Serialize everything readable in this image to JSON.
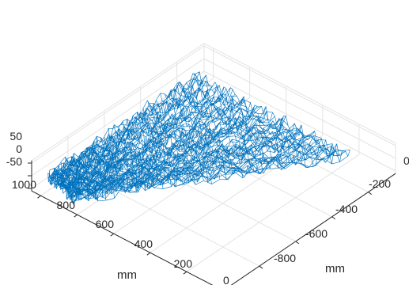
{
  "chart_data": {
    "type": "surface3d",
    "render_style": "mesh",
    "view": "isometric 3-D with box grid",
    "line_color": "#0072BD",
    "axes_color": "#262626",
    "grid_color": "#e3e3e3",
    "x_axis": {
      "label": "mm",
      "ticks": [
        0,
        -200,
        -400,
        -600,
        -800
      ],
      "tick_labels": [
        "0",
        "-200",
        "-400",
        "-600",
        "-800"
      ],
      "lim": [
        -950,
        0
      ]
    },
    "y_axis": {
      "label": "mm",
      "ticks": [
        0,
        200,
        400,
        600,
        800,
        1000
      ],
      "tick_labels": [
        "0",
        "200",
        "400",
        "600",
        "800",
        "1000"
      ],
      "lim": [
        0,
        1050
      ]
    },
    "z_axis": {
      "label": "",
      "ticks": [
        -50,
        0,
        50
      ],
      "tick_labels": [
        "-50",
        "0",
        "50"
      ],
      "lim": [
        -60,
        60
      ]
    },
    "surface_region": {
      "description_corners_xy_mm": [
        [
          0,
          820
        ],
        [
          -850,
          150
        ],
        [
          -850,
          1000
        ],
        [
          -40,
          1000
        ]
      ],
      "z_amplitude_mm": 30
    }
  }
}
